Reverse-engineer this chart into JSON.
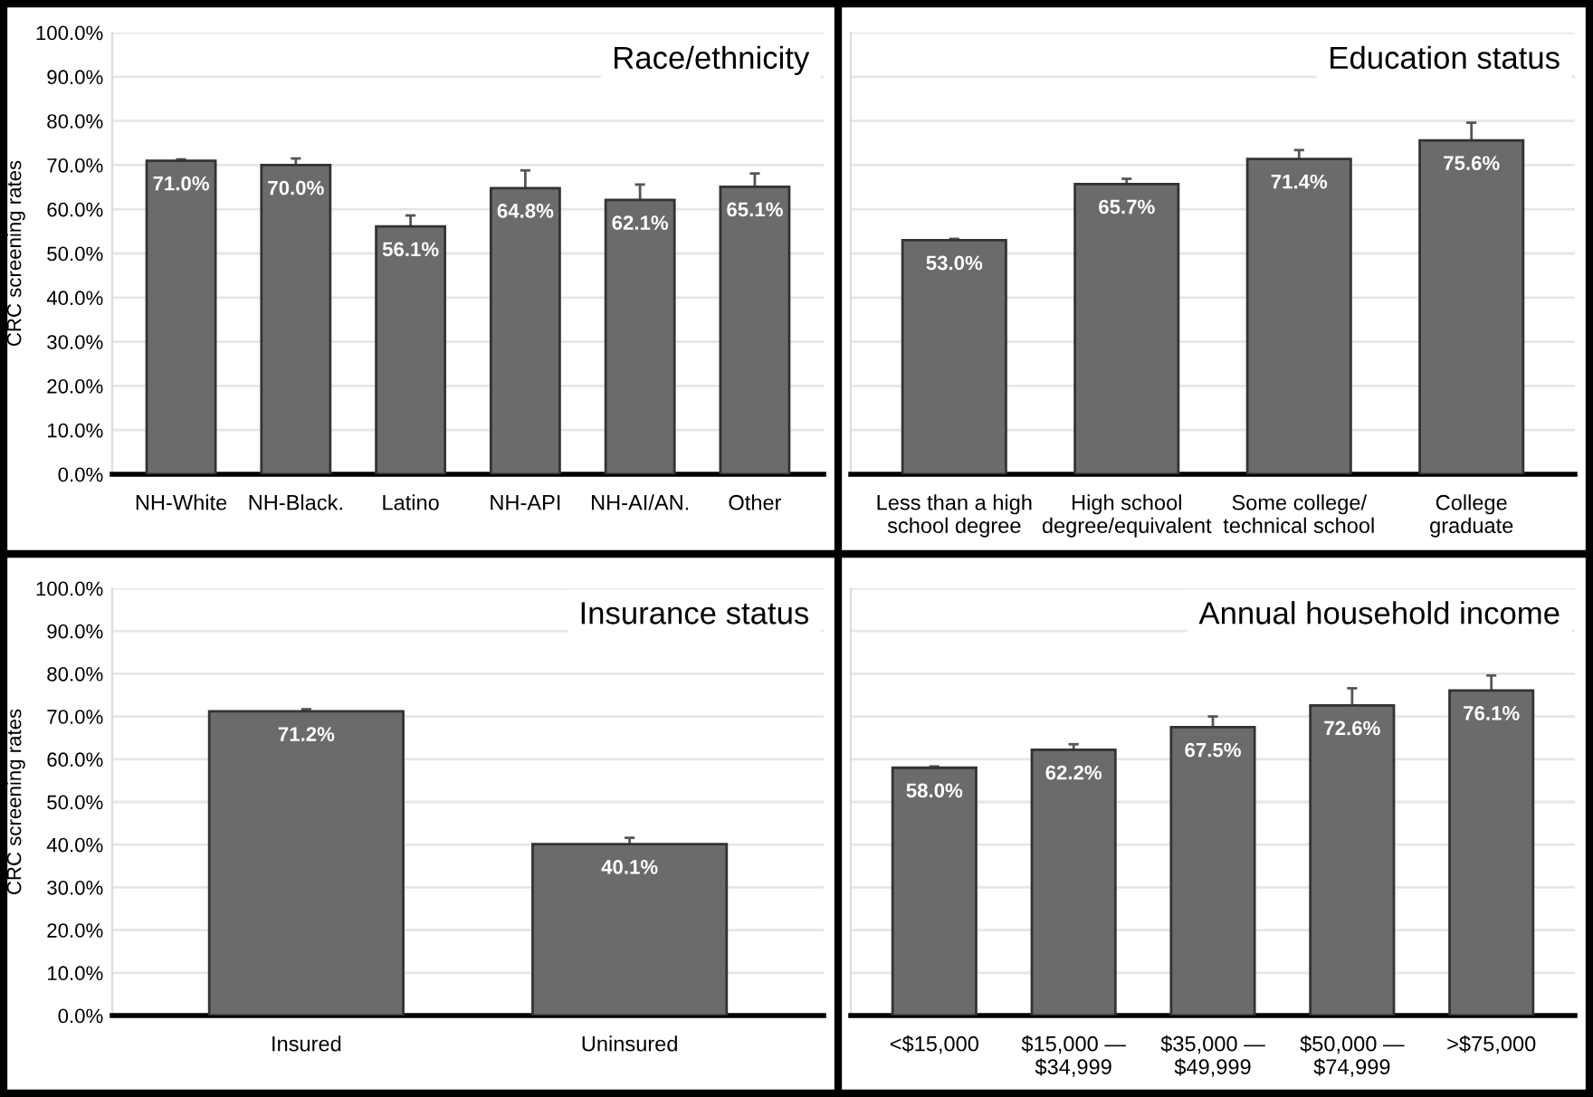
{
  "chart_data": [
    {
      "type": "bar",
      "title": "Race/ethnicity",
      "ylabel": "CRC screening rates",
      "categories": [
        "NH-White",
        "NH-Black.",
        "Latino",
        "NH-API",
        "NH-AI/AN.",
        "Other"
      ],
      "values": [
        71.0,
        70.0,
        56.1,
        64.8,
        62.1,
        65.1
      ],
      "errors": [
        0.3,
        1.5,
        2.5,
        4,
        3.5,
        3
      ],
      "value_labels": [
        "71.0%",
        "70.0%",
        "56.1%",
        "64.8%",
        "62.1%",
        "65.1%"
      ],
      "color": "#6b6b6b",
      "ylim": [
        0,
        100
      ],
      "yticks": [
        {
          "value": 0,
          "label": "0.0%"
        },
        {
          "value": 10,
          "label": "10.0%"
        },
        {
          "value": 20,
          "label": "20.0%"
        },
        {
          "value": 30,
          "label": "30.0%"
        },
        {
          "value": 40,
          "label": "40.0%"
        },
        {
          "value": 50,
          "label": "50.0%"
        },
        {
          "value": 60,
          "label": "60.0%"
        },
        {
          "value": 70,
          "label": "70.0%"
        },
        {
          "value": 80,
          "label": "80.0%"
        },
        {
          "value": 90,
          "label": "90.0%"
        },
        {
          "value": 100,
          "label": "100.0%"
        }
      ],
      "grid": "y",
      "legend": false
    },
    {
      "type": "bar",
      "title": "Education status",
      "categories": [
        "Less than a high\nschool degree",
        "High school\ndegree/equivalent",
        "Some college/\ntechnical school",
        "College\ngraduate"
      ],
      "values": [
        53.0,
        65.7,
        71.4,
        75.6
      ],
      "errors": [
        0.3,
        1.2,
        2,
        4
      ],
      "value_labels": [
        "53.0%",
        "65.7%",
        "71.4%",
        "75.6%"
      ],
      "color": "#6b6b6b",
      "ylim": [
        0,
        100
      ],
      "yticks": [
        0,
        10,
        20,
        30,
        40,
        50,
        60,
        70,
        80,
        90,
        100
      ],
      "grid": "y",
      "legend": false,
      "tick_labels": "x"
    },
    {
      "type": "bar",
      "title": "Insurance status",
      "ylabel": "CRC screening rates",
      "categories": [
        "Insured",
        "Uninsured"
      ],
      "values": [
        71.2,
        40.1
      ],
      "errors": [
        0.5,
        1.5
      ],
      "value_labels": [
        "71.2%",
        "40.1%"
      ],
      "color": "#6b6b6b",
      "ylim": [
        0,
        100
      ],
      "yticks": [
        {
          "value": 0,
          "label": "0.0%"
        },
        {
          "value": 10,
          "label": "10.0%"
        },
        {
          "value": 20,
          "label": "20.0%"
        },
        {
          "value": 30,
          "label": "30.0%"
        },
        {
          "value": 40,
          "label": "40.0%"
        },
        {
          "value": 50,
          "label": "50.0%"
        },
        {
          "value": 60,
          "label": "60.0%"
        },
        {
          "value": 70,
          "label": "70.0%"
        },
        {
          "value": 80,
          "label": "80.0%"
        },
        {
          "value": 90,
          "label": "90.0%"
        },
        {
          "value": 100,
          "label": "100.0%"
        }
      ],
      "grid": "y",
      "legend": false
    },
    {
      "type": "bar",
      "title": "Annual household income",
      "categories": [
        "<$15,000",
        "$15,000 —\n$34,999",
        "$35,000 —\n$49,999",
        "$50,000 —\n$74,999",
        ">$75,000"
      ],
      "values": [
        58.0,
        62.2,
        67.5,
        72.6,
        76.1
      ],
      "errors": [
        0.3,
        1.3,
        2.5,
        4,
        3.5
      ],
      "value_labels": [
        "58.0%",
        "62.2%",
        "67.5%",
        "72.6%",
        "76.1%"
      ],
      "color": "#6b6b6b",
      "ylim": [
        0,
        100
      ],
      "yticks": [
        0,
        10,
        20,
        30,
        40,
        50,
        60,
        70,
        80,
        90,
        100
      ],
      "grid": "y",
      "legend": false,
      "tick_labels": "x"
    }
  ]
}
